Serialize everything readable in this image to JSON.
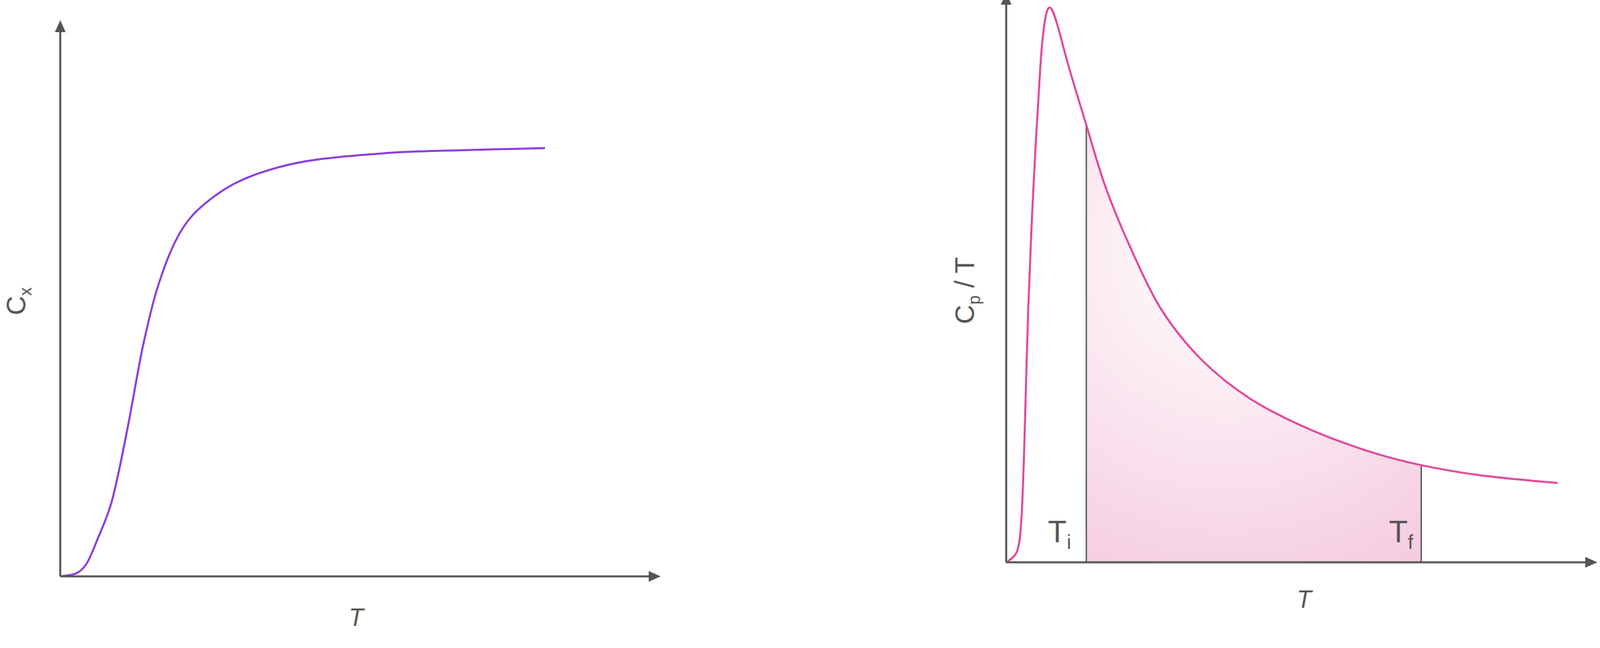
{
  "chart_data": [
    {
      "type": "line",
      "y_label": {
        "text": "C",
        "subscript": "x"
      },
      "x_label": "T",
      "x": [
        0,
        2.8,
        4.5,
        6.2,
        8.8,
        11.4,
        14.0,
        16.6,
        20.1,
        24.4,
        31.3,
        41.7,
        55.5,
        67.6,
        82.2
      ],
      "values": [
        0,
        0.6,
        2.4,
        6.5,
        14.0,
        27.1,
        42.1,
        53.3,
        62.6,
        68.2,
        72.9,
        76.1,
        77.6,
        78.1,
        78.5
      ],
      "color": "#8a3de0",
      "xlim": [
        0,
        100
      ],
      "ylim": [
        0,
        100
      ],
      "tick_labels": false
    },
    {
      "type": "line",
      "y_label": {
        "text": "C",
        "subscript": "p",
        "suffix": " / T"
      },
      "x_label": "T",
      "x": [
        0.3,
        1.9,
        2.6,
        3.1,
        3.8,
        4.7,
        5.9,
        6.7,
        7.6,
        8.8,
        10.7,
        13.6,
        17.1,
        21.4,
        26.6,
        33.5,
        42.1,
        52.5,
        62.9,
        71.5,
        81.9,
        95.0
      ],
      "values": [
        0.2,
        2.1,
        7.6,
        20.7,
        46.8,
        69.2,
        91.6,
        100.0,
        102.2,
        99.1,
        91.6,
        81.3,
        69.2,
        58.0,
        46.8,
        37.5,
        30.1,
        24.4,
        20.3,
        17.9,
        16.0,
        14.6
      ],
      "color": "#e0489a",
      "xlim": [
        0,
        100
      ],
      "ylim": [
        0,
        103
      ],
      "tick_labels": false,
      "shaded_region": {
        "from": 13.8,
        "to": 71.5,
        "color": "#f3c3da",
        "from_label": {
          "text": "T",
          "subscript": "i"
        },
        "to_label": {
          "text": "T",
          "subscript": "f"
        }
      }
    }
  ]
}
